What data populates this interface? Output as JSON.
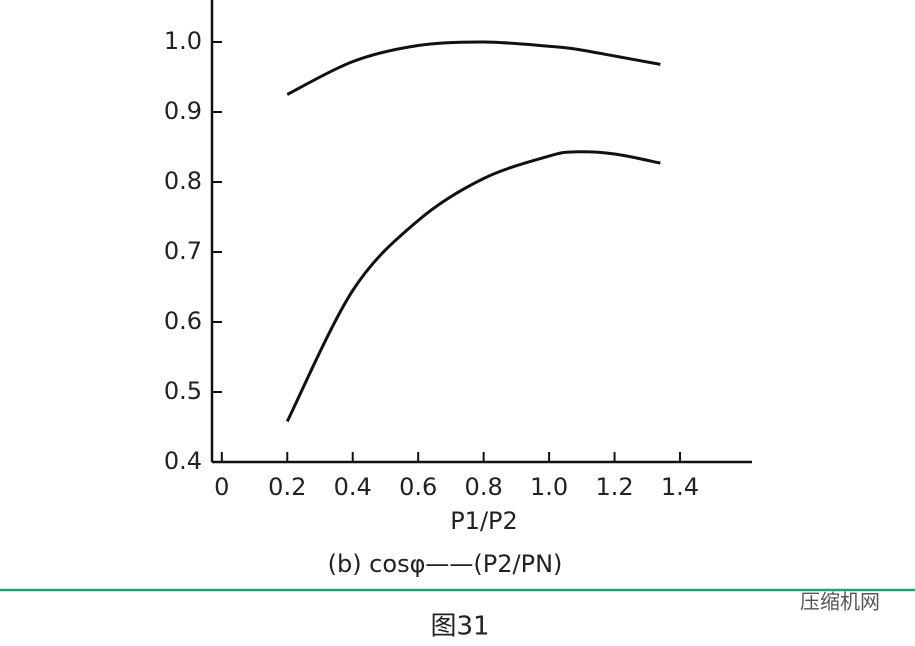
{
  "chart_data": {
    "type": "line",
    "x_label": "P1/P2",
    "caption": "(b)    cosφ——(P2/PN)",
    "figure_label": "图31",
    "watermark": "压缩机网",
    "xlim": [
      -0.03,
      1.62
    ],
    "ylim": [
      0.4,
      1.06
    ],
    "xticks": [
      0,
      0.2,
      0.4,
      0.6,
      0.8,
      {
        "value": 1,
        "label": "1.0"
      },
      1.2,
      1.4
    ],
    "yticks": [
      0.4,
      0.5,
      0.6,
      0.7,
      0.8,
      0.9,
      {
        "value": 1,
        "label": "1.0"
      }
    ],
    "x": [
      0.2,
      0.4,
      0.6,
      0.8,
      1.0,
      1.08,
      1.2,
      1.34
    ],
    "series": [
      {
        "color": "#111111",
        "values": [
          0.925,
          0.972,
          0.995,
          1.0,
          0.994,
          0.99,
          0.98,
          0.968
        ]
      },
      {
        "color": "#111111",
        "values": [
          0.458,
          0.645,
          0.745,
          0.805,
          0.837,
          0.843,
          0.84,
          0.827
        ]
      }
    ],
    "divider_color": "#2a9a7a"
  }
}
